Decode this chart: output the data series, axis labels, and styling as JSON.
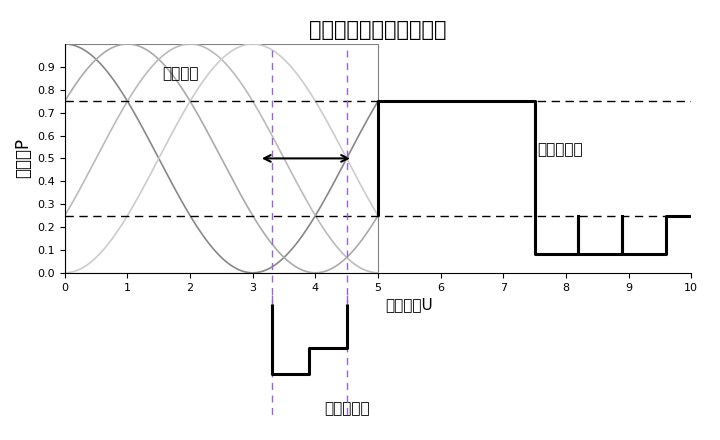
{
  "title": "电光调制器输出特性曲线",
  "ylabel": "光功率P",
  "xlabel_main": "偏置电压U",
  "label_drift": "曲线漂移",
  "label_output": "输出光脉冲",
  "label_modulation": "调制电脉冲",
  "curve_colors": [
    "#888888",
    "#aaaaaa",
    "#bbbbbb",
    "#cccccc"
  ],
  "curve_offsets": [
    0.0,
    1.0,
    2.0,
    3.0
  ],
  "curve_period": 6.0,
  "curve_xmax": 5.0,
  "xlim": [
    0,
    10
  ],
  "ylim": [
    0,
    1.0
  ],
  "dashed_high": 0.75,
  "dashed_mid": 0.25,
  "dashed_low": 0.0,
  "vline_x1": 3.3,
  "vline_x2": 4.5,
  "output_pulse_x": [
    5.0,
    5.0,
    7.5,
    7.5,
    7.5,
    7.5,
    8.2,
    8.2,
    8.2,
    8.2,
    8.9,
    8.9,
    8.9,
    8.9,
    9.6,
    9.6,
    10.0
  ],
  "output_pulse_y": [
    0.25,
    0.75,
    0.75,
    0.25,
    0.25,
    0.08,
    0.08,
    0.25,
    0.25,
    0.08,
    0.08,
    0.25,
    0.25,
    0.08,
    0.08,
    0.25,
    0.25
  ],
  "mod_pulse_x": [
    3.3,
    3.3,
    3.9,
    3.9,
    4.5,
    4.5
  ],
  "mod_pulse_y": [
    0.0,
    -0.4,
    -0.4,
    -0.25,
    -0.25,
    0.0
  ],
  "background_color": "#ffffff",
  "title_fontsize": 15,
  "axis_fontsize": 12,
  "annotation_fontsize": 11,
  "tick_fontsize": 8
}
